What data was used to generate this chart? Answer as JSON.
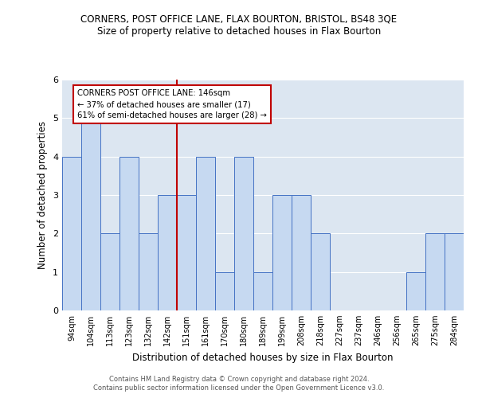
{
  "title": "CORNERS, POST OFFICE LANE, FLAX BOURTON, BRISTOL, BS48 3QE",
  "subtitle": "Size of property relative to detached houses in Flax Bourton",
  "xlabel": "Distribution of detached houses by size in Flax Bourton",
  "ylabel": "Number of detached properties",
  "categories": [
    "94sqm",
    "104sqm",
    "113sqm",
    "123sqm",
    "132sqm",
    "142sqm",
    "151sqm",
    "161sqm",
    "170sqm",
    "180sqm",
    "189sqm",
    "199sqm",
    "208sqm",
    "218sqm",
    "227sqm",
    "237sqm",
    "246sqm",
    "256sqm",
    "265sqm",
    "275sqm",
    "284sqm"
  ],
  "values": [
    4,
    5,
    2,
    4,
    2,
    3,
    3,
    4,
    1,
    4,
    1,
    3,
    3,
    2,
    0,
    0,
    0,
    0,
    1,
    2,
    2
  ],
  "bar_color": "#c6d9f1",
  "bar_edge_color": "#4472c4",
  "vline_color": "#c00000",
  "annotation_text": "CORNERS POST OFFICE LANE: 146sqm\n← 37% of detached houses are smaller (17)\n61% of semi-detached houses are larger (28) →",
  "annotation_box_edge": "#c00000",
  "ylim": [
    0,
    6
  ],
  "yticks": [
    0,
    1,
    2,
    3,
    4,
    5,
    6
  ],
  "footnote1": "Contains HM Land Registry data © Crown copyright and database right 2024.",
  "footnote2": "Contains public sector information licensed under the Open Government Licence v3.0.",
  "background_color": "#ffffff",
  "grid_color": "#ffffff",
  "plot_bg_color": "#dce6f1"
}
